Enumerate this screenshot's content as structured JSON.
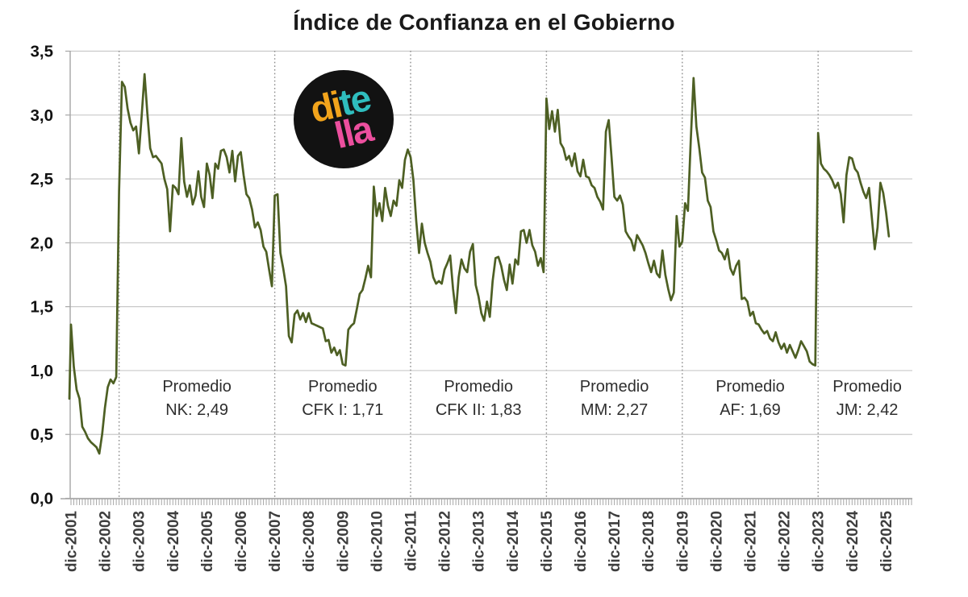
{
  "title": "Índice de Confianza en el Gobierno",
  "logo": {
    "background": "#121212",
    "segments": [
      {
        "text": "di",
        "color": "#F2A41C"
      },
      {
        "text": "te",
        "color": "#2FBDBE"
      },
      {
        "text": "lla",
        "color": "#EC4F9E"
      }
    ]
  },
  "colors": {
    "line": "#4D5F23",
    "grid": "#C9C9C9",
    "axis": "#A6A6A6",
    "divider": "#8C8C8C",
    "y_label": "#111111",
    "x_label": "#3D3D3D",
    "period_label": "#2E2E2E"
  },
  "chart_data": {
    "type": "line",
    "title": "Índice de Confianza en el Gobierno",
    "xlabel": "",
    "ylabel": "",
    "ylim": [
      0,
      3.5
    ],
    "grid": "horizontal",
    "legend_position": "none",
    "yticks": [
      "0,0",
      "0,5",
      "1,0",
      "1,5",
      "2,0",
      "2,5",
      "3,0",
      "3,5"
    ],
    "xticklabels": [
      "dic-2001",
      "dic-2002",
      "dic-2003",
      "dic-2004",
      "dic-2005",
      "dic-2006",
      "dic-2007",
      "dic-2008",
      "dic-2009",
      "dic-2010",
      "dic-2011",
      "dic-2012",
      "dic-2013",
      "dic-2014",
      "dic-2015",
      "dic-2016",
      "dic-2017",
      "dic-2018",
      "dic-2019",
      "dic-2020",
      "dic-2021",
      "dic-2022",
      "dic-2023",
      "dic-2024",
      "dic-2025"
    ],
    "dividers": [
      {
        "date": "may-2003",
        "month_index": 18
      },
      {
        "date": "dic-2007",
        "month_index": 73
      },
      {
        "date": "dic-2011",
        "month_index": 121
      },
      {
        "date": "dic-2015",
        "month_index": 169
      },
      {
        "date": "dic-2019",
        "month_index": 217
      },
      {
        "date": "dic-2023",
        "month_index": 265
      }
    ],
    "periods": [
      {
        "label": "Promedio",
        "detail": "NK: 2,49"
      },
      {
        "label": "Promedio",
        "detail": "CFK I: 1,71"
      },
      {
        "label": "Promedio",
        "detail": "CFK II: 1,83"
      },
      {
        "label": "Promedio",
        "detail": "MM: 2,27"
      },
      {
        "label": "Promedio",
        "detail": "AF: 1,69"
      },
      {
        "label": "Promedio",
        "detail": "JM: 2,42"
      }
    ],
    "series": [
      {
        "name": "Índice de Confianza en el Gobierno",
        "start": "nov-2001",
        "frequency": "monthly",
        "values": [
          0.78,
          1.36,
          1.03,
          0.85,
          0.78,
          0.56,
          0.52,
          0.47,
          0.44,
          0.42,
          0.4,
          0.35,
          0.5,
          0.71,
          0.87,
          0.93,
          0.9,
          0.95,
          2.4,
          3.26,
          3.22,
          3.05,
          2.94,
          2.88,
          2.91,
          2.7,
          3.0,
          3.32,
          3.01,
          2.74,
          2.67,
          2.68,
          2.65,
          2.62,
          2.5,
          2.42,
          2.09,
          2.45,
          2.43,
          2.38,
          2.82,
          2.48,
          2.36,
          2.45,
          2.3,
          2.37,
          2.56,
          2.36,
          2.28,
          2.62,
          2.53,
          2.35,
          2.62,
          2.58,
          2.72,
          2.73,
          2.67,
          2.55,
          2.72,
          2.48,
          2.68,
          2.71,
          2.53,
          2.38,
          2.35,
          2.26,
          2.12,
          2.16,
          2.1,
          1.97,
          1.93,
          1.79,
          1.66,
          2.37,
          2.38,
          1.92,
          1.8,
          1.66,
          1.27,
          1.22,
          1.44,
          1.47,
          1.4,
          1.45,
          1.38,
          1.45,
          1.37,
          1.36,
          1.35,
          1.34,
          1.33,
          1.23,
          1.24,
          1.14,
          1.18,
          1.12,
          1.16,
          1.05,
          1.04,
          1.32,
          1.35,
          1.37,
          1.48,
          1.6,
          1.63,
          1.72,
          1.82,
          1.73,
          2.44,
          2.21,
          2.31,
          2.17,
          2.43,
          2.29,
          2.21,
          2.33,
          2.29,
          2.49,
          2.43,
          2.65,
          2.73,
          2.67,
          2.49,
          2.17,
          1.92,
          2.15,
          2.0,
          1.92,
          1.85,
          1.73,
          1.68,
          1.7,
          1.68,
          1.79,
          1.84,
          1.9,
          1.64,
          1.45,
          1.73,
          1.87,
          1.8,
          1.77,
          1.93,
          1.99,
          1.67,
          1.58,
          1.45,
          1.39,
          1.54,
          1.42,
          1.7,
          1.88,
          1.89,
          1.82,
          1.71,
          1.63,
          1.83,
          1.68,
          1.87,
          1.83,
          2.09,
          2.1,
          2.0,
          2.1,
          1.98,
          1.93,
          1.82,
          1.88,
          1.77,
          3.13,
          2.89,
          3.03,
          2.87,
          3.04,
          2.78,
          2.74,
          2.65,
          2.68,
          2.6,
          2.7,
          2.56,
          2.52,
          2.65,
          2.52,
          2.51,
          2.45,
          2.43,
          2.36,
          2.32,
          2.26,
          2.87,
          2.96,
          2.67,
          2.36,
          2.33,
          2.37,
          2.3,
          2.09,
          2.05,
          2.02,
          1.94,
          2.06,
          2.02,
          1.98,
          1.92,
          1.84,
          1.77,
          1.86,
          1.76,
          1.73,
          1.94,
          1.75,
          1.64,
          1.55,
          1.61,
          2.21,
          1.97,
          2.01,
          2.31,
          2.25,
          2.8,
          3.29,
          2.91,
          2.74,
          2.55,
          2.51,
          2.33,
          2.28,
          2.09,
          2.02,
          1.94,
          1.92,
          1.87,
          1.95,
          1.8,
          1.75,
          1.82,
          1.86,
          1.56,
          1.57,
          1.54,
          1.43,
          1.46,
          1.37,
          1.36,
          1.32,
          1.29,
          1.31,
          1.25,
          1.23,
          1.3,
          1.22,
          1.17,
          1.21,
          1.14,
          1.2,
          1.15,
          1.1,
          1.16,
          1.23,
          1.19,
          1.15,
          1.07,
          1.05,
          1.04,
          2.86,
          2.62,
          2.58,
          2.56,
          2.53,
          2.49,
          2.43,
          2.47,
          2.38,
          2.16,
          2.53,
          2.67,
          2.66,
          2.58,
          2.55,
          2.47,
          2.4,
          2.35,
          2.43,
          2.19,
          1.95,
          2.12,
          2.47,
          2.39,
          2.24,
          2.05
        ]
      }
    ]
  }
}
